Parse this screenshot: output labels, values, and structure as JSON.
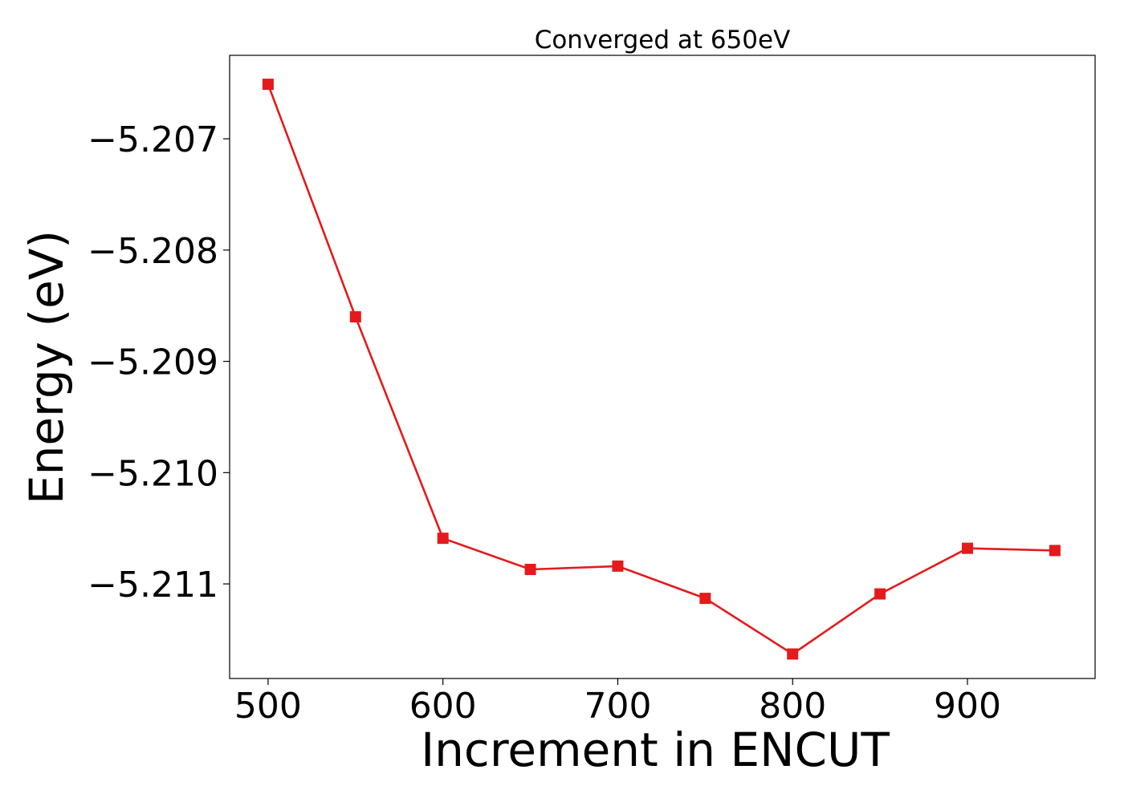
{
  "chart_data": {
    "type": "line",
    "title": "Converged at 650eV",
    "xlabel": "Increment in ENCUT",
    "ylabel": "Energy (eV)",
    "xlim": [
      478,
      973
    ],
    "ylim": [
      -5.21185,
      -5.20625
    ],
    "xticks": [
      500,
      600,
      700,
      800,
      900
    ],
    "xtick_labels": [
      "500",
      "600",
      "700",
      "800",
      "900"
    ],
    "yticks": [
      -5.207,
      -5.208,
      -5.209,
      -5.21,
      -5.211
    ],
    "ytick_labels": [
      "−5.207",
      "−5.208",
      "−5.209",
      "−5.210",
      "−5.211"
    ],
    "grid": false,
    "series": [
      {
        "color": "#e41a1c",
        "marker": "square",
        "x": [
          500,
          550,
          600,
          650,
          700,
          750,
          800,
          850,
          900,
          950
        ],
        "y": [
          -5.20651,
          -5.2086,
          -5.21059,
          -5.21087,
          -5.21084,
          -5.21113,
          -5.21163,
          -5.21109,
          -5.21068,
          -5.2107
        ]
      }
    ]
  }
}
